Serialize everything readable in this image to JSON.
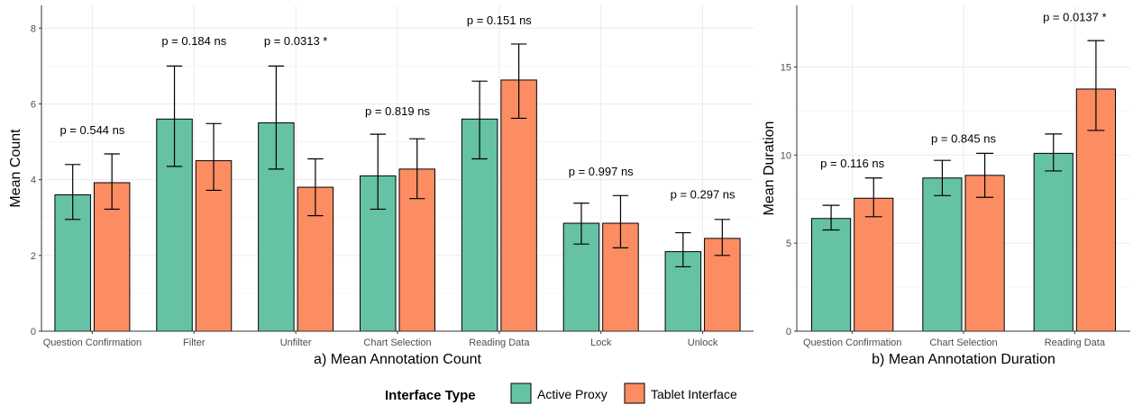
{
  "colors": {
    "active_proxy": "#66c2a5",
    "tablet_interface": "#fc8d62",
    "grid": "#ebebeb",
    "axis": "#333333"
  },
  "legend": {
    "title": "Interface Type",
    "items": [
      {
        "label": "Active Proxy",
        "color": "#66c2a5"
      },
      {
        "label": "Tablet Interface",
        "color": "#fc8d62"
      }
    ],
    "position": "bottom"
  },
  "chart_data": [
    {
      "type": "bar",
      "title": "a) Mean Annotation Count",
      "xlabel": "a) Mean Annotation Count",
      "ylabel": "Mean Count",
      "ylim": [
        0,
        8.6
      ],
      "yticks": [
        0,
        2,
        4,
        6,
        8
      ],
      "grid": true,
      "categories": [
        "Question Confirmation",
        "Filter",
        "Unfilter",
        "Chart Selection",
        "Reading Data",
        "Lock",
        "Unlock"
      ],
      "series": [
        {
          "name": "Active Proxy",
          "values": [
            3.6,
            5.6,
            5.5,
            4.1,
            5.6,
            2.85,
            2.1
          ],
          "err_low": [
            2.95,
            4.35,
            4.28,
            3.22,
            4.55,
            2.3,
            1.7
          ],
          "err_high": [
            4.4,
            7.0,
            7.0,
            5.2,
            6.6,
            3.38,
            2.6
          ]
        },
        {
          "name": "Tablet Interface",
          "values": [
            3.92,
            4.5,
            3.8,
            4.28,
            6.63,
            2.85,
            2.45
          ],
          "err_low": [
            3.22,
            3.72,
            3.05,
            3.5,
            5.62,
            2.2,
            2.0
          ],
          "err_high": [
            4.68,
            5.48,
            4.55,
            5.08,
            7.58,
            3.58,
            2.95
          ]
        }
      ],
      "annotations": [
        "p = 0.544 ns",
        "p = 0.184 ns",
        "p = 0.0313 *",
        "p = 0.819 ns",
        "p = 0.151 ns",
        "p = 0.997 ns",
        "p = 0.297 ns"
      ],
      "annotation_y": [
        5.3,
        7.65,
        7.65,
        5.8,
        8.2,
        4.2,
        3.6
      ]
    },
    {
      "type": "bar",
      "title": "b) Mean Annotation Duration",
      "xlabel": "b) Mean Annotation Duration",
      "ylabel": "Mean Duration",
      "ylim": [
        0,
        18.5
      ],
      "yticks": [
        0,
        5,
        10,
        15
      ],
      "grid": true,
      "categories": [
        "Question Confirmation",
        "Chart Selection",
        "Reading Data"
      ],
      "series": [
        {
          "name": "Active Proxy",
          "values": [
            6.4,
            8.7,
            10.1
          ],
          "err_low": [
            5.75,
            7.7,
            9.1
          ],
          "err_high": [
            7.15,
            9.7,
            11.2
          ]
        },
        {
          "name": "Tablet Interface",
          "values": [
            7.55,
            8.85,
            13.75
          ],
          "err_low": [
            6.5,
            7.6,
            11.4
          ],
          "err_high": [
            8.7,
            10.1,
            16.5
          ]
        }
      ],
      "annotations": [
        "p = 0.116 ns",
        "p = 0.845 ns",
        "p = 0.0137 *"
      ],
      "annotation_y": [
        9.5,
        10.9,
        17.8
      ]
    }
  ]
}
